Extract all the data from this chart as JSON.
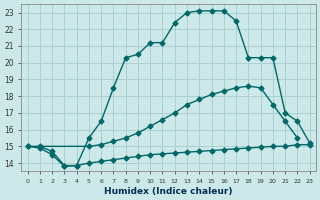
{
  "xlabel": "Humidex (Indice chaleur)",
  "bg_color": "#cce8e8",
  "grid_color": "#aad0d0",
  "line_color": "#006868",
  "line1_x": [
    0,
    1,
    2,
    3,
    4,
    5,
    6,
    7,
    8,
    9,
    10,
    11,
    12,
    13,
    14,
    15,
    16,
    17,
    18,
    19,
    20,
    21,
    22,
    23
  ],
  "line1_y": [
    15.0,
    14.9,
    14.5,
    13.8,
    13.85,
    15.5,
    16.5,
    18.5,
    20.3,
    20.5,
    21.2,
    21.2,
    22.4,
    23.0,
    23.1,
    23.1,
    23.1,
    22.5,
    20.3,
    20.3,
    20.3,
    17.0,
    16.5,
    15.2
  ],
  "line2_x": [
    0,
    5,
    6,
    7,
    8,
    9,
    10,
    11,
    12,
    13,
    14,
    15,
    16,
    17,
    18,
    19,
    20,
    21,
    22
  ],
  "line2_y": [
    15.0,
    15.0,
    15.1,
    15.3,
    15.5,
    15.8,
    16.2,
    16.6,
    17.0,
    17.5,
    17.8,
    18.1,
    18.3,
    18.5,
    18.6,
    18.5,
    17.5,
    16.5,
    15.5
  ],
  "line3_x": [
    1,
    2,
    3,
    4,
    5,
    6,
    7,
    8,
    9,
    10,
    11,
    12,
    13,
    14,
    15,
    16,
    17,
    18,
    19,
    20,
    21,
    22,
    23
  ],
  "line3_y": [
    15.0,
    14.7,
    13.85,
    13.85,
    14.0,
    14.1,
    14.2,
    14.3,
    14.4,
    14.5,
    14.55,
    14.6,
    14.65,
    14.7,
    14.75,
    14.8,
    14.85,
    14.9,
    14.95,
    15.0,
    15.0,
    15.1,
    15.1
  ],
  "ylim": [
    13.5,
    23.5
  ],
  "xlim": [
    -0.5,
    23.5
  ],
  "yticks": [
    14,
    15,
    16,
    17,
    18,
    19,
    20,
    21,
    22,
    23
  ],
  "xticks": [
    0,
    1,
    2,
    3,
    4,
    5,
    6,
    7,
    8,
    9,
    10,
    11,
    12,
    13,
    14,
    15,
    16,
    17,
    18,
    19,
    20,
    21,
    22,
    23
  ]
}
